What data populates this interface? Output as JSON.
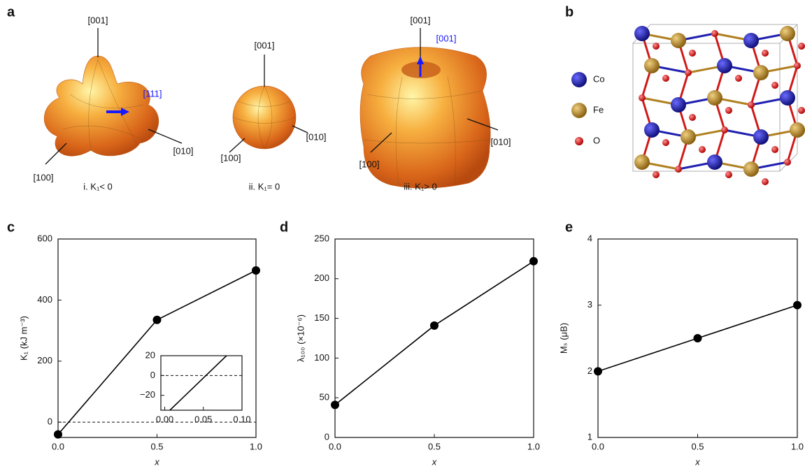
{
  "panel_letters": [
    "a",
    "b",
    "c",
    "d",
    "e"
  ],
  "panel_a": {
    "shapes": [
      {
        "labels": [
          "[001]",
          "[111]",
          "[010]",
          "[100]"
        ],
        "caption": "i. K₁< 0"
      },
      {
        "labels": [
          "[001]",
          "[010]",
          "[100]"
        ],
        "caption": "ii. K₁= 0"
      },
      {
        "labels": [
          "[001]",
          "[001]",
          "[010]",
          "[100]"
        ],
        "caption": "iii. K₁> 0"
      }
    ]
  },
  "panel_b": {
    "legend": [
      {
        "name": "Co",
        "color": "#1c1c9e"
      },
      {
        "name": "Fe",
        "color": "#b58a2a"
      },
      {
        "name": "O",
        "color": "#e01818"
      }
    ]
  },
  "chart_data": [
    {
      "type": "line",
      "xlabel": "x",
      "ylabel": "K₁ (kJ m⁻³)",
      "x": [
        0,
        0.5,
        1.0
      ],
      "series": [
        {
          "color": "#000000",
          "values": [
            -40,
            335,
            497
          ]
        }
      ],
      "xlim": [
        0,
        1.0
      ],
      "ylim": [
        -50,
        600
      ],
      "xticks": [
        {
          "value": 0,
          "label": "0.0"
        },
        {
          "value": 0.5,
          "label": "0.5"
        },
        {
          "value": 1.0,
          "label": "1.0"
        }
      ],
      "yticks": [
        0,
        200,
        400,
        600
      ],
      "hline": 0,
      "inset": {
        "xlim": [
          -0.005,
          0.1
        ],
        "ylim": [
          -35,
          20
        ],
        "xticks": [
          {
            "value": 0,
            "label": "0.00"
          },
          {
            "value": 0.05,
            "label": "0.05"
          },
          {
            "value": 0.1,
            "label": "0.10"
          }
        ],
        "yticks": [
          20,
          0,
          {
            "value": -20,
            "label": "−20"
          }
        ]
      }
    },
    {
      "type": "line",
      "xlabel": "x",
      "ylabel": "λ₁₀₀ (×10⁻⁶)",
      "x": [
        0,
        0.5,
        1.0
      ],
      "series": [
        {
          "color": "#000000",
          "values": [
            41,
            141,
            222
          ]
        }
      ],
      "xlim": [
        0,
        1.0
      ],
      "ylim": [
        0,
        250
      ],
      "xticks": [
        {
          "value": 0,
          "label": "0.0"
        },
        {
          "value": 0.5,
          "label": "0.5"
        },
        {
          "value": 1.0,
          "label": "1.0"
        }
      ],
      "yticks": [
        0,
        50,
        100,
        150,
        200,
        250
      ]
    },
    {
      "type": "line",
      "xlabel": "x",
      "ylabel": "Mₛ (μB)",
      "x": [
        0,
        0.5,
        1.0
      ],
      "series": [
        {
          "color": "#000000",
          "values": [
            2,
            2.5,
            3
          ]
        }
      ],
      "xlim": [
        0,
        1.0
      ],
      "ylim": [
        1,
        4
      ],
      "xticks": [
        {
          "value": 0,
          "label": "0.0"
        },
        {
          "value": 0.5,
          "label": "0.5"
        },
        {
          "value": 1.0,
          "label": "1.0"
        }
      ],
      "yticks": [
        1,
        2,
        3,
        4
      ]
    }
  ]
}
